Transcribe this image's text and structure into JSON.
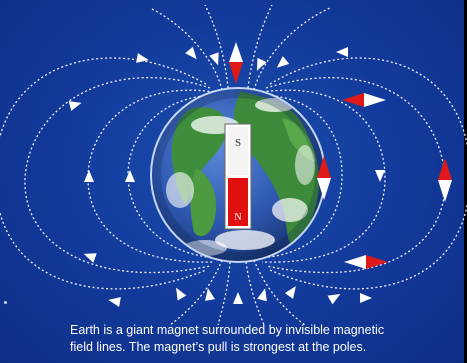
{
  "magnet": {
    "south_label": "S",
    "north_label": "N"
  },
  "caption": {
    "line1": "Earth is a giant magnet surrounded by invisible magnetic",
    "line2": "field lines.  The magnet’s pull is strongest at the poles."
  },
  "colors": {
    "background": "#12399a",
    "field_lines": "#ffffff",
    "compass_red": "#e01818",
    "compass_white": "#ffffff",
    "magnet_red": "#e01010"
  },
  "icons": {
    "earth": "earth-globe-icon",
    "compass": "compass-needle-icon",
    "arrow": "field-arrow-icon"
  }
}
